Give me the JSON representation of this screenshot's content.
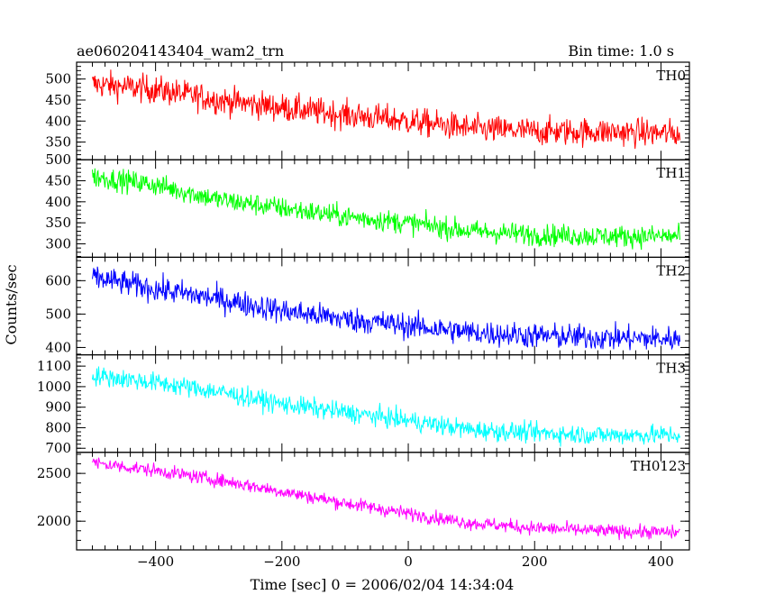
{
  "chart_data": {
    "type": "line",
    "title": "ae060204143404_wam2_trn",
    "bin_time_label": "Bin time: 1.0 s",
    "xlabel": "Time [sec] 0 = 2006/02/04 14:34:04",
    "ylabel": "Counts/sec",
    "xlim": [
      -525,
      445
    ],
    "x_ticks": [
      -400,
      -200,
      0,
      200,
      400
    ],
    "x_range_data": [
      -500,
      430
    ],
    "bin_time_s": 1.0,
    "panels": [
      {
        "name": "TH0",
        "color": "#ff0000",
        "ylim": [
          308,
          540
        ],
        "y_ticks": [
          350,
          400,
          450,
          500
        ],
        "trend": [
          [
            -500,
            488
          ],
          [
            -400,
            475
          ],
          [
            -300,
            450
          ],
          [
            -200,
            432
          ],
          [
            -100,
            415
          ],
          [
            0,
            400
          ],
          [
            100,
            382
          ],
          [
            200,
            375
          ],
          [
            300,
            375
          ],
          [
            430,
            370
          ]
        ],
        "noise_amplitude": 28
      },
      {
        "name": "TH1",
        "color": "#00ff00",
        "ylim": [
          268,
          500
        ],
        "y_ticks": [
          300,
          350,
          400,
          450,
          500
        ],
        "trend": [
          [
            -500,
            460
          ],
          [
            -400,
            440
          ],
          [
            -300,
            405
          ],
          [
            -200,
            385
          ],
          [
            -100,
            365
          ],
          [
            0,
            350
          ],
          [
            100,
            330
          ],
          [
            200,
            322
          ],
          [
            300,
            318
          ],
          [
            430,
            318
          ]
        ],
        "noise_amplitude": 22
      },
      {
        "name": "TH2",
        "color": "#0000ff",
        "ylim": [
          378,
          670
        ],
        "y_ticks": [
          400,
          500,
          600
        ],
        "trend": [
          [
            -500,
            610
          ],
          [
            -400,
            575
          ],
          [
            -300,
            545
          ],
          [
            -200,
            510
          ],
          [
            -100,
            485
          ],
          [
            0,
            465
          ],
          [
            100,
            445
          ],
          [
            200,
            435
          ],
          [
            300,
            430
          ],
          [
            430,
            425
          ]
        ],
        "noise_amplitude": 32
      },
      {
        "name": "TH3",
        "color": "#00ffff",
        "ylim": [
          680,
          1155
        ],
        "y_ticks": [
          700,
          800,
          900,
          1000,
          1100
        ],
        "trend": [
          [
            -500,
            1055
          ],
          [
            -400,
            1020
          ],
          [
            -300,
            975
          ],
          [
            -200,
            915
          ],
          [
            -100,
            875
          ],
          [
            0,
            835
          ],
          [
            100,
            790
          ],
          [
            200,
            775
          ],
          [
            300,
            765
          ],
          [
            430,
            765
          ]
        ],
        "noise_amplitude": 40
      },
      {
        "name": "TH0123",
        "color": "#ff00ff",
        "ylim": [
          1700,
          2720
        ],
        "y_ticks": [
          2000,
          2500
        ],
        "trend": [
          [
            -500,
            2610
          ],
          [
            -400,
            2530
          ],
          [
            -300,
            2430
          ],
          [
            -200,
            2310
          ],
          [
            -100,
            2190
          ],
          [
            0,
            2080
          ],
          [
            100,
            1980
          ],
          [
            200,
            1930
          ],
          [
            300,
            1900
          ],
          [
            430,
            1880
          ]
        ],
        "noise_amplitude": 60
      }
    ]
  }
}
